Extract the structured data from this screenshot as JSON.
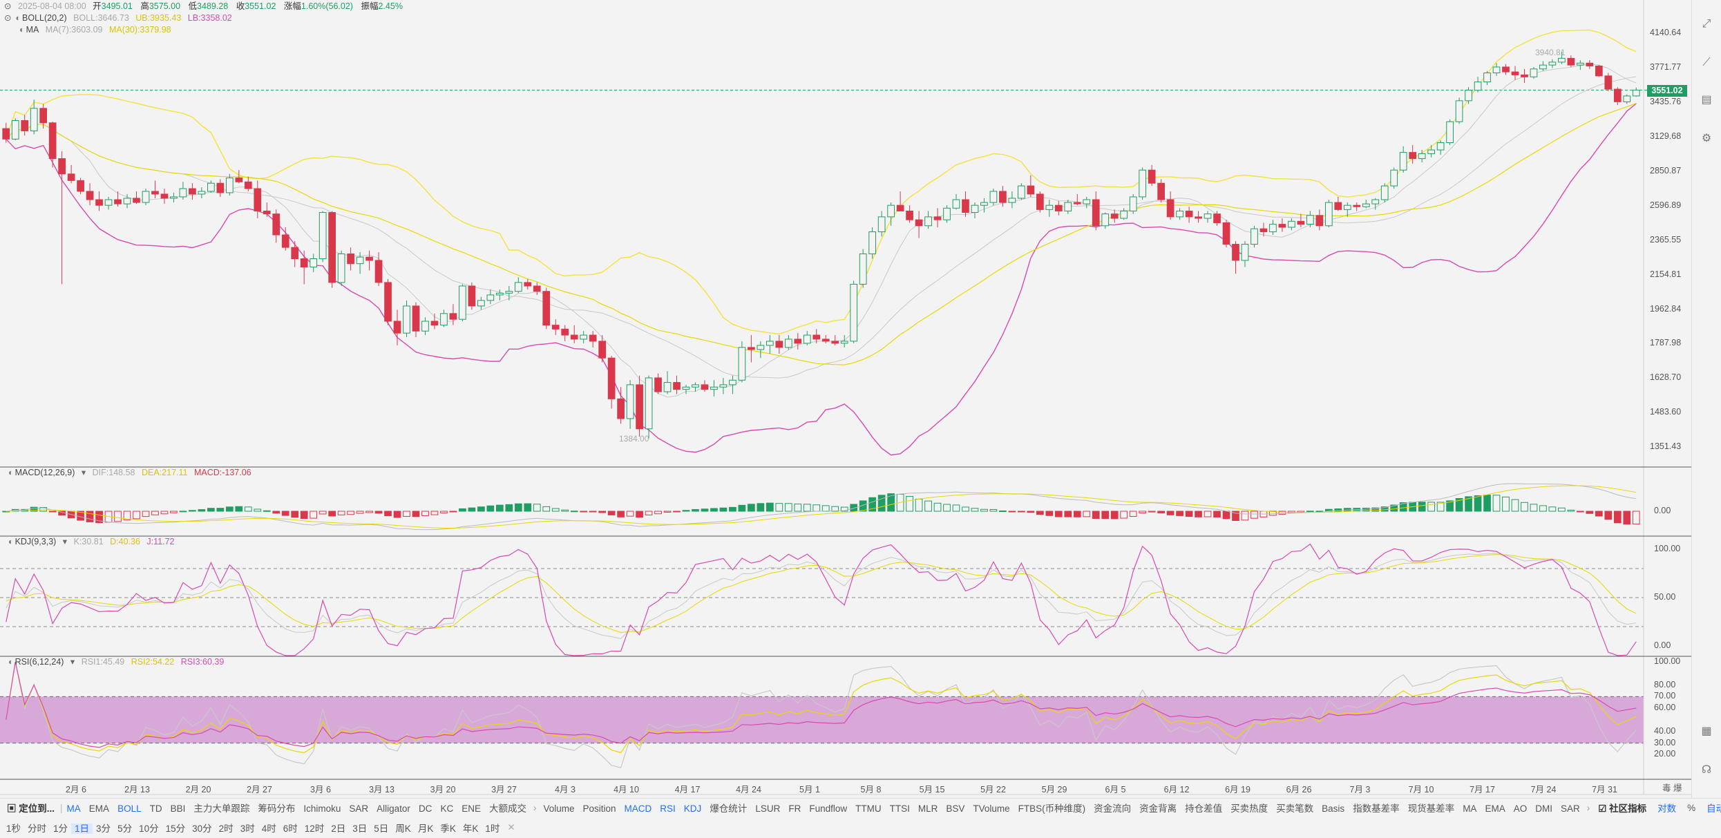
{
  "header": {
    "date": "2025-08-04 08:00",
    "open_label": "开",
    "open": "3495.01",
    "high_label": "高",
    "high": "3575.00",
    "low_label": "低",
    "low": "3489.28",
    "close_label": "收",
    "close": "3551.02",
    "change_label": "涨幅",
    "change": "1.60%(56.02)",
    "amp_label": "振幅",
    "amp": "2.45%"
  },
  "boll_legend": {
    "name": "BOLL(20,2)",
    "boll": "BOLL:3646.73",
    "ub": "UB:3935.43",
    "lb": "LB:3358.02"
  },
  "ma_legend": {
    "name": "MA",
    "ma7": "MA(7):3603.09",
    "ma30": "MA(30):3379.98"
  },
  "macd_legend": {
    "name": "MACD(12,26,9)",
    "dif": "DIF:148.58",
    "dea": "DEA:217.11",
    "macd": "MACD:-137.06"
  },
  "kdj_legend": {
    "name": "KDJ(9,3,3)",
    "k": "K:30.81",
    "d": "D:40.36",
    "j": "J:11.72"
  },
  "rsi_legend": {
    "name": "RSI(6,12,24)",
    "rsi1": "RSI1:45.49",
    "rsi2": "RSI2:54.22",
    "rsi3": "RSI3:60.39"
  },
  "price_axis": [
    "4140.64",
    "3771.77",
    "3435.76",
    "3129.68",
    "2850.87",
    "2596.89",
    "2365.55",
    "2154.81",
    "1962.84",
    "1787.98",
    "1628.70",
    "1483.60",
    "1351.43"
  ],
  "current_price": "3551.02",
  "max_label": "3940.81",
  "min_label": "1384.00",
  "macd_axis": [
    "0.00"
  ],
  "kdj_axis": [
    "100.00",
    "50.00",
    "0.00"
  ],
  "rsi_axis": [
    "100.00",
    "80.00",
    "70.00",
    "60.00",
    "40.00",
    "30.00",
    "20.00"
  ],
  "x_axis": [
    "2月 6",
    "2月 13",
    "2月 20",
    "2月 27",
    "3月 6",
    "3月 13",
    "3月 20",
    "3月 27",
    "4月 3",
    "4月 10",
    "4月 17",
    "4月 24",
    "5月 1",
    "5月 8",
    "5月 15",
    "5月 22",
    "5月 29",
    "6月 5",
    "6月 12",
    "6月 19",
    "6月 26",
    "7月 3",
    "7月 10",
    "7月 17",
    "7月 24",
    "7月 31"
  ],
  "indicator_bar": {
    "left_label": "定位到...",
    "main": [
      "MA",
      "EMA",
      "BOLL",
      "TD",
      "BBI",
      "主力大单跟踪",
      "筹码分布",
      "Ichimoku",
      "SAR",
      "Alligator",
      "DC",
      "KC",
      "ENE",
      "大额成交"
    ],
    "sub": [
      "Volume",
      "Position",
      "MACD",
      "RSI",
      "KDJ",
      "爆仓统计",
      "LSUR",
      "FR",
      "Fundflow",
      "TTMU",
      "TTSI",
      "MLR",
      "BSV",
      "TVolume",
      "FTBS(币种维度)",
      "资金流向",
      "资金背离",
      "持仓差值",
      "买卖热度",
      "买卖笔数",
      "Basis",
      "指数基差率",
      "现货基差率",
      "MA",
      "EMA",
      "AO",
      "DMI",
      "SAR"
    ],
    "active": [
      "MA",
      "BOLL",
      "MACD",
      "RSI",
      "KDJ"
    ],
    "community": "社区指标",
    "log": "对数",
    "pct": "%",
    "auto": "自动"
  },
  "timeframes": [
    "1秒",
    "分时",
    "1分",
    "1日",
    "3分",
    "5分",
    "10分",
    "15分",
    "30分",
    "2时",
    "3时",
    "4时",
    "6时",
    "12时",
    "2日",
    "3日",
    "5日",
    "周K",
    "月K",
    "季K",
    "年K",
    "1时"
  ],
  "active_timeframe": "1日",
  "corner_label": "毒 爆",
  "colors": {
    "up": "#1e9e62",
    "down": "#d9384a",
    "ma7": "#c8c8c8",
    "ma30": "#e8d800",
    "boll": "#c8c8c8",
    "ub": "#f3e23c",
    "lb": "#d84ab0",
    "accent": "#1e6fff"
  },
  "icons": [
    "collapse-chevron-icon",
    "eye-icon",
    "dropdown-triangle-icon",
    "exit-fullscreen-icon",
    "drawing-line-icon",
    "indicator-chart-icon",
    "settings-icon",
    "layout-icon",
    "headset-icon",
    "user-avatar-icon"
  ],
  "chart_data": {
    "type": "candlestick",
    "ylim": [
      1300,
      4300
    ],
    "candles_ohlc": [
      [
        3200,
        3250,
        3080,
        3110
      ],
      [
        3110,
        3290,
        3100,
        3270
      ],
      [
        3270,
        3320,
        3140,
        3180
      ],
      [
        3180,
        3460,
        3150,
        3380
      ],
      [
        3380,
        3420,
        3200,
        3250
      ],
      [
        3250,
        3260,
        2880,
        2950
      ],
      [
        2950,
        3010,
        2100,
        2830
      ],
      [
        2830,
        2900,
        2760,
        2780
      ],
      [
        2780,
        2800,
        2680,
        2700
      ],
      [
        2700,
        2760,
        2600,
        2640
      ],
      [
        2640,
        2700,
        2560,
        2600
      ],
      [
        2600,
        2660,
        2570,
        2640
      ],
      [
        2640,
        2700,
        2590,
        2610
      ],
      [
        2610,
        2680,
        2580,
        2650
      ],
      [
        2650,
        2700,
        2610,
        2620
      ],
      [
        2620,
        2720,
        2600,
        2700
      ],
      [
        2700,
        2780,
        2650,
        2680
      ],
      [
        2680,
        2720,
        2610,
        2650
      ],
      [
        2650,
        2690,
        2620,
        2660
      ],
      [
        2660,
        2770,
        2640,
        2720
      ],
      [
        2720,
        2760,
        2640,
        2680
      ],
      [
        2680,
        2730,
        2650,
        2700
      ],
      [
        2700,
        2780,
        2690,
        2760
      ],
      [
        2760,
        2790,
        2660,
        2690
      ],
      [
        2690,
        2830,
        2670,
        2800
      ],
      [
        2800,
        2860,
        2760,
        2770
      ],
      [
        2770,
        2810,
        2700,
        2720
      ],
      [
        2720,
        2780,
        2510,
        2560
      ],
      [
        2560,
        2620,
        2520,
        2540
      ],
      [
        2540,
        2570,
        2350,
        2400
      ],
      [
        2400,
        2450,
        2300,
        2320
      ],
      [
        2320,
        2360,
        2200,
        2250
      ],
      [
        2250,
        2300,
        2100,
        2200
      ],
      [
        2200,
        2280,
        2170,
        2250
      ],
      [
        2250,
        2560,
        2230,
        2550
      ],
      [
        2550,
        2560,
        2080,
        2110
      ],
      [
        2110,
        2300,
        2090,
        2280
      ],
      [
        2280,
        2320,
        2180,
        2220
      ],
      [
        2220,
        2290,
        2160,
        2260
      ],
      [
        2260,
        2300,
        2180,
        2240
      ],
      [
        2240,
        2290,
        2090,
        2110
      ],
      [
        2110,
        2130,
        1880,
        1900
      ],
      [
        1900,
        1960,
        1780,
        1840
      ],
      [
        1840,
        2010,
        1820,
        1980
      ],
      [
        1980,
        2000,
        1820,
        1850
      ],
      [
        1850,
        1920,
        1830,
        1900
      ],
      [
        1900,
        1940,
        1860,
        1880
      ],
      [
        1880,
        1960,
        1870,
        1940
      ],
      [
        1940,
        1990,
        1880,
        1910
      ],
      [
        1910,
        2100,
        1900,
        2090
      ],
      [
        2090,
        2110,
        1960,
        1980
      ],
      [
        1980,
        2030,
        1960,
        2010
      ],
      [
        2010,
        2070,
        1990,
        2040
      ],
      [
        2040,
        2070,
        2010,
        2050
      ],
      [
        2050,
        2090,
        2010,
        2060
      ],
      [
        2060,
        2140,
        2050,
        2110
      ],
      [
        2110,
        2130,
        2070,
        2090
      ],
      [
        2090,
        2110,
        2040,
        2060
      ],
      [
        2060,
        2080,
        1860,
        1880
      ],
      [
        1880,
        1910,
        1830,
        1860
      ],
      [
        1860,
        1880,
        1800,
        1830
      ],
      [
        1830,
        1880,
        1790,
        1810
      ],
      [
        1810,
        1850,
        1790,
        1830
      ],
      [
        1830,
        1850,
        1770,
        1800
      ],
      [
        1800,
        1830,
        1700,
        1720
      ],
      [
        1720,
        1730,
        1500,
        1540
      ],
      [
        1540,
        1590,
        1440,
        1460
      ],
      [
        1460,
        1620,
        1420,
        1600
      ],
      [
        1600,
        1640,
        1390,
        1420
      ],
      [
        1420,
        1640,
        1384,
        1630
      ],
      [
        1630,
        1650,
        1560,
        1570
      ],
      [
        1570,
        1660,
        1560,
        1610
      ],
      [
        1610,
        1640,
        1560,
        1580
      ],
      [
        1580,
        1600,
        1560,
        1590
      ],
      [
        1590,
        1610,
        1570,
        1600
      ],
      [
        1600,
        1620,
        1570,
        1580
      ],
      [
        1580,
        1620,
        1550,
        1590
      ],
      [
        1590,
        1630,
        1560,
        1600
      ],
      [
        1600,
        1640,
        1560,
        1620
      ],
      [
        1620,
        1800,
        1610,
        1770
      ],
      [
        1770,
        1830,
        1700,
        1760
      ],
      [
        1760,
        1800,
        1720,
        1780
      ],
      [
        1780,
        1830,
        1740,
        1800
      ],
      [
        1800,
        1830,
        1740,
        1770
      ],
      [
        1770,
        1830,
        1760,
        1810
      ],
      [
        1810,
        1840,
        1760,
        1790
      ],
      [
        1790,
        1850,
        1780,
        1830
      ],
      [
        1830,
        1860,
        1790,
        1810
      ],
      [
        1810,
        1830,
        1790,
        1800
      ],
      [
        1800,
        1830,
        1780,
        1790
      ],
      [
        1790,
        1830,
        1770,
        1800
      ],
      [
        1800,
        2120,
        1790,
        2100
      ],
      [
        2100,
        2310,
        2080,
        2280
      ],
      [
        2280,
        2450,
        2250,
        2420
      ],
      [
        2420,
        2560,
        2390,
        2520
      ],
      [
        2520,
        2620,
        2460,
        2600
      ],
      [
        2600,
        2700,
        2560,
        2560
      ],
      [
        2560,
        2600,
        2480,
        2500
      ],
      [
        2500,
        2560,
        2380,
        2460
      ],
      [
        2460,
        2560,
        2440,
        2520
      ],
      [
        2520,
        2580,
        2450,
        2500
      ],
      [
        2500,
        2600,
        2480,
        2580
      ],
      [
        2580,
        2680,
        2570,
        2640
      ],
      [
        2640,
        2700,
        2520,
        2550
      ],
      [
        2550,
        2620,
        2510,
        2600
      ],
      [
        2600,
        2650,
        2550,
        2620
      ],
      [
        2620,
        2720,
        2600,
        2700
      ],
      [
        2700,
        2740,
        2590,
        2620
      ],
      [
        2620,
        2700,
        2580,
        2650
      ],
      [
        2650,
        2760,
        2640,
        2740
      ],
      [
        2740,
        2820,
        2660,
        2680
      ],
      [
        2680,
        2700,
        2550,
        2570
      ],
      [
        2570,
        2640,
        2520,
        2600
      ],
      [
        2600,
        2630,
        2530,
        2560
      ],
      [
        2560,
        2640,
        2540,
        2620
      ],
      [
        2620,
        2680,
        2600,
        2610
      ],
      [
        2610,
        2660,
        2580,
        2640
      ],
      [
        2640,
        2700,
        2430,
        2460
      ],
      [
        2460,
        2550,
        2440,
        2540
      ],
      [
        2540,
        2570,
        2480,
        2510
      ],
      [
        2510,
        2580,
        2500,
        2560
      ],
      [
        2560,
        2680,
        2540,
        2660
      ],
      [
        2660,
        2880,
        2640,
        2860
      ],
      [
        2860,
        2900,
        2740,
        2760
      ],
      [
        2760,
        2790,
        2620,
        2640
      ],
      [
        2640,
        2700,
        2500,
        2520
      ],
      [
        2520,
        2580,
        2500,
        2560
      ],
      [
        2560,
        2590,
        2480,
        2520
      ],
      [
        2520,
        2560,
        2480,
        2510
      ],
      [
        2510,
        2560,
        2480,
        2540
      ],
      [
        2540,
        2560,
        2460,
        2480
      ],
      [
        2480,
        2500,
        2320,
        2340
      ],
      [
        2340,
        2360,
        2160,
        2240
      ],
      [
        2240,
        2360,
        2200,
        2340
      ],
      [
        2340,
        2460,
        2320,
        2440
      ],
      [
        2440,
        2480,
        2390,
        2420
      ],
      [
        2420,
        2500,
        2400,
        2470
      ],
      [
        2470,
        2510,
        2420,
        2450
      ],
      [
        2450,
        2510,
        2430,
        2490
      ],
      [
        2490,
        2540,
        2450,
        2470
      ],
      [
        2470,
        2560,
        2450,
        2530
      ],
      [
        2530,
        2570,
        2430,
        2460
      ],
      [
        2460,
        2640,
        2450,
        2620
      ],
      [
        2620,
        2660,
        2560,
        2570
      ],
      [
        2570,
        2620,
        2520,
        2600
      ],
      [
        2600,
        2620,
        2560,
        2590
      ],
      [
        2590,
        2640,
        2580,
        2610
      ],
      [
        2610,
        2650,
        2570,
        2640
      ],
      [
        2640,
        2760,
        2620,
        2740
      ],
      [
        2740,
        2880,
        2720,
        2860
      ],
      [
        2860,
        3050,
        2840,
        3000
      ],
      [
        3000,
        3060,
        2910,
        2950
      ],
      [
        2950,
        3020,
        2920,
        2990
      ],
      [
        2990,
        3060,
        2960,
        3020
      ],
      [
        3020,
        3100,
        2980,
        3080
      ],
      [
        3080,
        3280,
        3060,
        3260
      ],
      [
        3260,
        3480,
        3240,
        3450
      ],
      [
        3450,
        3580,
        3420,
        3550
      ],
      [
        3550,
        3680,
        3530,
        3630
      ],
      [
        3630,
        3740,
        3600,
        3720
      ],
      [
        3720,
        3820,
        3690,
        3780
      ],
      [
        3780,
        3810,
        3700,
        3730
      ],
      [
        3730,
        3790,
        3650,
        3700
      ],
      [
        3700,
        3760,
        3620,
        3680
      ],
      [
        3680,
        3780,
        3660,
        3760
      ],
      [
        3760,
        3840,
        3740,
        3800
      ],
      [
        3800,
        3860,
        3770,
        3830
      ],
      [
        3830,
        3940,
        3810,
        3870
      ],
      [
        3870,
        3900,
        3780,
        3800
      ],
      [
        3800,
        3850,
        3750,
        3820
      ],
      [
        3820,
        3850,
        3760,
        3790
      ],
      [
        3790,
        3800,
        3680,
        3690
      ],
      [
        3690,
        3720,
        3540,
        3560
      ],
      [
        3560,
        3580,
        3410,
        3440
      ],
      [
        3440,
        3510,
        3420,
        3495
      ],
      [
        3495,
        3575,
        3489,
        3551
      ]
    ]
  }
}
